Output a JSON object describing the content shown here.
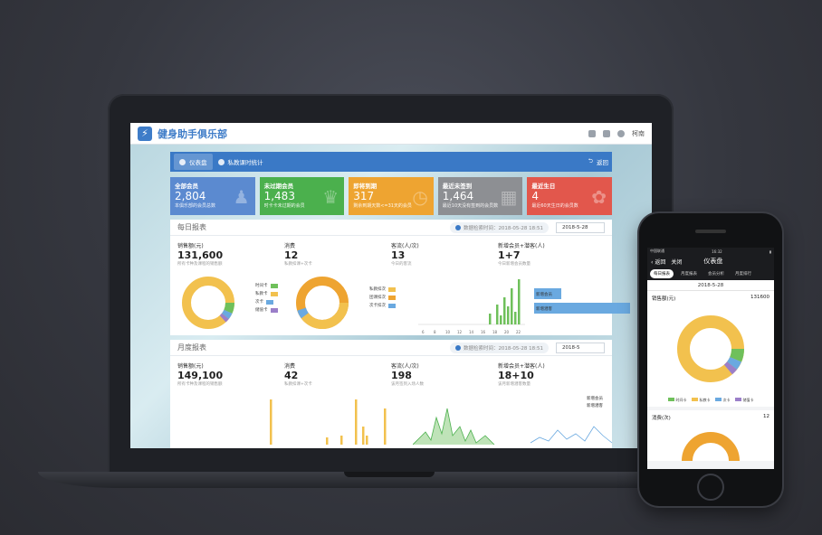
{
  "app": {
    "brand": "健身助手俱乐部",
    "user": "柯南"
  },
  "nav": {
    "tabs": [
      "仪表盘",
      "私教课时统计"
    ],
    "back": "返回"
  },
  "cards": [
    {
      "title": "全部会员",
      "value": "2,804",
      "sub": "本俱乐部的会员总数",
      "color": "#5b8ad0",
      "glyph": "♟"
    },
    {
      "title": "未过期会员",
      "value": "1,483",
      "sub": "时卡卡未过期的会员",
      "color": "#4bb04d",
      "glyph": "♛"
    },
    {
      "title": "即将到期",
      "value": "317",
      "sub": "剩余到期天数<=31天的会员",
      "color": "#eea431",
      "glyph": "◷"
    },
    {
      "title": "最近未签到",
      "value": "1,464",
      "sub": "最近10天没有签到的会员数",
      "color": "#8d8f93",
      "glyph": "▦"
    },
    {
      "title": "最近生日",
      "value": "4",
      "sub": "最近60天生日的会员数",
      "color": "#e2574c",
      "glyph": "✿"
    }
  ],
  "daily": {
    "title": "每日报表",
    "time_label": "数据检索时间：2018-05-28 18:51",
    "date": "2018-5-28",
    "stats": [
      {
        "label": "销售额(元)",
        "value": "131,600",
        "desc": "所有卡种及课程的销售额"
      },
      {
        "label": "消费",
        "value": "12",
        "desc": "私教扣课+次卡"
      },
      {
        "label": "客流(人/次)",
        "value": "13",
        "desc": "今日的客流"
      },
      {
        "label": "新增会员+潜客(人)",
        "value": "1+7",
        "desc": "今日新增会员数量"
      }
    ],
    "legend1": [
      {
        "name": "时间卡",
        "color": "#6fc05b"
      },
      {
        "name": "私教卡",
        "color": "#f2c14e"
      },
      {
        "name": "次卡",
        "color": "#6aa9e0"
      },
      {
        "name": "储值卡",
        "color": "#9b7fc9"
      }
    ],
    "legend2": [
      {
        "name": "私教扣次",
        "color": "#f2c14e"
      },
      {
        "name": "团课扣次",
        "color": "#eea431"
      },
      {
        "name": "次卡扣次",
        "color": "#6aa9e0"
      }
    ],
    "traffic_ticks": [
      "6",
      "8",
      "10",
      "12",
      "14",
      "16",
      "18",
      "20",
      "22"
    ],
    "new_labels": [
      "新增会员",
      "新增潜客"
    ]
  },
  "monthly": {
    "title": "月度报表",
    "time_label": "数据检索时间：2018-05-28 18:51",
    "date": "2018-5",
    "stats": [
      {
        "label": "销售额(元)",
        "value": "149,100",
        "desc": "所有卡种及课程的销售额"
      },
      {
        "label": "消费",
        "value": "42",
        "desc": "私教扣课+次卡"
      },
      {
        "label": "客流(人/次)",
        "value": "198",
        "desc": "该月签到入场人数"
      },
      {
        "label": "新增会员+潜客(人)",
        "value": "18+10",
        "desc": "该月新增潜客数量"
      }
    ],
    "legend": [
      "新增会员",
      "新增潜客"
    ]
  },
  "phone": {
    "carrier": "中国联通",
    "clock": "16:32",
    "back": "返回",
    "close": "关闭",
    "title": "仪表盘",
    "tabs": [
      "每日报表",
      "月度报表",
      "会员分析",
      "月度排行"
    ],
    "date": "2018-5-28",
    "sales_label": "销售额(元)",
    "sales_value": "131600",
    "consume_label": "消费(次)",
    "consume_value": "12",
    "legend": [
      {
        "name": "时间卡",
        "color": "#6fc05b"
      },
      {
        "name": "私教卡",
        "color": "#f2c14e"
      },
      {
        "name": "次卡",
        "color": "#6aa9e0"
      },
      {
        "name": "储值卡",
        "color": "#9b7fc9"
      }
    ]
  }
}
